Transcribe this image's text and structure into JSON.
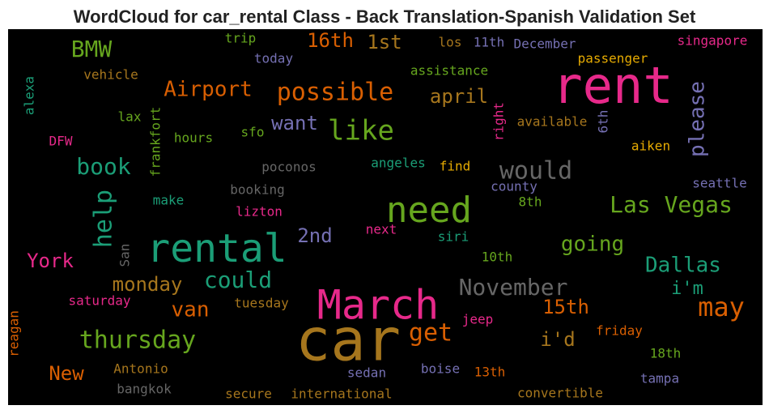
{
  "title": "WordCloud for car_rental Class - Back Translation-Spanish Validation Set",
  "words": [
    {
      "text": "rent",
      "color": "#e7298a"
    },
    {
      "text": "car",
      "color": "#a6761d"
    },
    {
      "text": "March",
      "color": "#e7298a"
    },
    {
      "text": "rental",
      "color": "#1b9e77"
    },
    {
      "text": "need",
      "color": "#66a61e"
    },
    {
      "text": "like",
      "color": "#66a61e"
    },
    {
      "text": "possible",
      "color": "#d95f02"
    },
    {
      "text": "Airport",
      "color": "#d95f02"
    },
    {
      "text": "BMW",
      "color": "#66a61e"
    },
    {
      "text": "16th",
      "color": "#d95f02"
    },
    {
      "text": "1st",
      "color": "#a6761d"
    },
    {
      "text": "trip",
      "color": "#66a61e"
    },
    {
      "text": "today",
      "color": "#7570b3"
    },
    {
      "text": "los",
      "color": "#a6761d"
    },
    {
      "text": "11th",
      "color": "#7570b3"
    },
    {
      "text": "December",
      "color": "#7570b3"
    },
    {
      "text": "singapore",
      "color": "#e7298a"
    },
    {
      "text": "passenger",
      "color": "#e6ab02"
    },
    {
      "text": "assistance",
      "color": "#66a61e"
    },
    {
      "text": "vehicle",
      "color": "#a6761d"
    },
    {
      "text": "alexa",
      "color": "#1b9e77"
    },
    {
      "text": "frankfort",
      "color": "#66a61e"
    },
    {
      "text": "lax",
      "color": "#66a61e"
    },
    {
      "text": "april",
      "color": "#a6761d"
    },
    {
      "text": "right",
      "color": "#e7298a"
    },
    {
      "text": "available",
      "color": "#a6761d"
    },
    {
      "text": "6th",
      "color": "#7570b3"
    },
    {
      "text": "please",
      "color": "#7570b3"
    },
    {
      "text": "want",
      "color": "#7570b3"
    },
    {
      "text": "hours",
      "color": "#66a61e"
    },
    {
      "text": "sfo",
      "color": "#66a61e"
    },
    {
      "text": "DFW",
      "color": "#e7298a"
    },
    {
      "text": "aiken",
      "color": "#e6ab02"
    },
    {
      "text": "book",
      "color": "#1b9e77"
    },
    {
      "text": "poconos",
      "color": "#666666"
    },
    {
      "text": "angeles",
      "color": "#1b9e77"
    },
    {
      "text": "find",
      "color": "#e6ab02"
    },
    {
      "text": "would",
      "color": "#666666"
    },
    {
      "text": "booking",
      "color": "#666666"
    },
    {
      "text": "make",
      "color": "#1b9e77"
    },
    {
      "text": "county",
      "color": "#7570b3"
    },
    {
      "text": "8th",
      "color": "#66a61e"
    },
    {
      "text": "seattle",
      "color": "#7570b3"
    },
    {
      "text": "help",
      "color": "#1b9e77"
    },
    {
      "text": "Las Vegas",
      "color": "#66a61e"
    },
    {
      "text": "lizton",
      "color": "#e7298a"
    },
    {
      "text": "next",
      "color": "#e7298a"
    },
    {
      "text": "siri",
      "color": "#1b9e77"
    },
    {
      "text": "2nd",
      "color": "#7570b3"
    },
    {
      "text": "going",
      "color": "#66a61e"
    },
    {
      "text": "San",
      "color": "#666666"
    },
    {
      "text": "York",
      "color": "#e7298a"
    },
    {
      "text": "10th",
      "color": "#66a61e"
    },
    {
      "text": "Dallas",
      "color": "#1b9e77"
    },
    {
      "text": "could",
      "color": "#1b9e77"
    },
    {
      "text": "monday",
      "color": "#a6761d"
    },
    {
      "text": "November",
      "color": "#666666"
    },
    {
      "text": "i'm",
      "color": "#1b9e77"
    },
    {
      "text": "saturday",
      "color": "#e7298a"
    },
    {
      "text": "tuesday",
      "color": "#a6761d"
    },
    {
      "text": "van",
      "color": "#d95f02"
    },
    {
      "text": "15th",
      "color": "#d95f02"
    },
    {
      "text": "may",
      "color": "#d95f02"
    },
    {
      "text": "reagan",
      "color": "#d95f02"
    },
    {
      "text": "jeep",
      "color": "#e7298a"
    },
    {
      "text": "get",
      "color": "#d95f02"
    },
    {
      "text": "thursday",
      "color": "#66a61e"
    },
    {
      "text": "friday",
      "color": "#d95f02"
    },
    {
      "text": "i'd",
      "color": "#a6761d"
    },
    {
      "text": "18th",
      "color": "#66a61e"
    },
    {
      "text": "New",
      "color": "#d95f02"
    },
    {
      "text": "Antonio",
      "color": "#a6761d"
    },
    {
      "text": "sedan",
      "color": "#7570b3"
    },
    {
      "text": "boise",
      "color": "#7570b3"
    },
    {
      "text": "13th",
      "color": "#d95f02"
    },
    {
      "text": "tampa",
      "color": "#7570b3"
    },
    {
      "text": "bangkok",
      "color": "#666666"
    },
    {
      "text": "secure",
      "color": "#a6761d"
    },
    {
      "text": "international",
      "color": "#a6761d"
    },
    {
      "text": "convertible",
      "color": "#a6761d"
    }
  ]
}
